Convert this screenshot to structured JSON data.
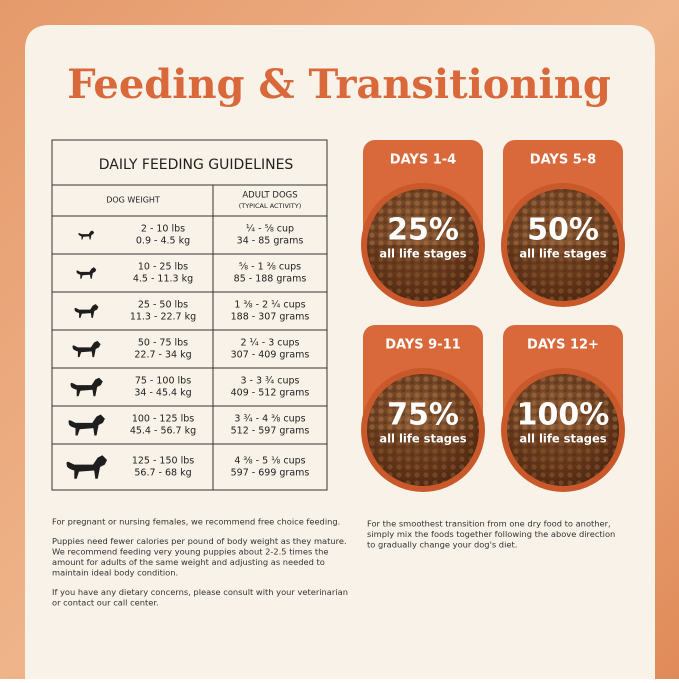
{
  "title": "Feeding & Transitioning",
  "table": {
    "heading": "DAILY FEEDING GUIDELINES",
    "columns": [
      "DOG WEIGHT",
      "ADULT DOGS",
      "(TYPICAL ACTIVITY)"
    ],
    "rows": [
      [
        "2 - 10 lbs",
        "0.9 - 4.5 kg",
        "¼ - ⅝ cup",
        "34 - 85 grams"
      ],
      [
        "10 - 25 lbs",
        "4.5 - 11.3 kg",
        "⅝ - 1 ⅜ cups",
        "85 - 188 grams"
      ],
      [
        "25 - 50 lbs",
        "11.3 - 22.7 kg",
        "1 ⅜ - 2 ¼ cups",
        "188 - 307 grams"
      ],
      [
        "50 - 75 lbs",
        "22.7 - 34 kg",
        "2 ¼ - 3 cups",
        "307 - 409 grams"
      ],
      [
        "75 - 100 lbs",
        "34 - 45.4 kg",
        "3 - 3 ¾ cups",
        "409 - 512 grams"
      ],
      [
        "100 - 125 lbs",
        "45.4 - 56.7 kg",
        "3 ¾ - 4 ⅜ cups",
        "512 - 597 grams"
      ],
      [
        "125 - 150 lbs",
        "56.7 - 68 kg",
        "4 ⅜ - 5 ⅛ cups",
        "597 - 699 grams"
      ]
    ]
  },
  "stages": [
    {
      "days": "DAYS 1-4",
      "percent": "25%",
      "label": "all life stages"
    },
    {
      "days": "DAYS 5-8",
      "percent": "50%",
      "label": "all life stages"
    },
    {
      "days": "DAYS 9-11",
      "percent": "75%",
      "label": "all life stages"
    },
    {
      "days": "DAYS 12+",
      "percent": "100%",
      "label": "all life stages"
    }
  ],
  "notes_left": [
    [
      "For pregnant or nursing females, we recommend free choice feeding."
    ],
    [
      "Puppies need fewer calories per pound of body weight as they mature.",
      "We recommend feeding very young puppies about 2-2.5 times the",
      "amount for adults of the same weight and adjusting as needed to",
      "maintain ideal body condition."
    ],
    [
      "If you have any dietary concerns, please consult with your veterinarian",
      "or contact our call center."
    ]
  ],
  "notes_right": [
    "For the smoothest transition from one dry food to another,",
    "simply mix the foods together following the above direction",
    "to gradually change your dog's diet."
  ]
}
